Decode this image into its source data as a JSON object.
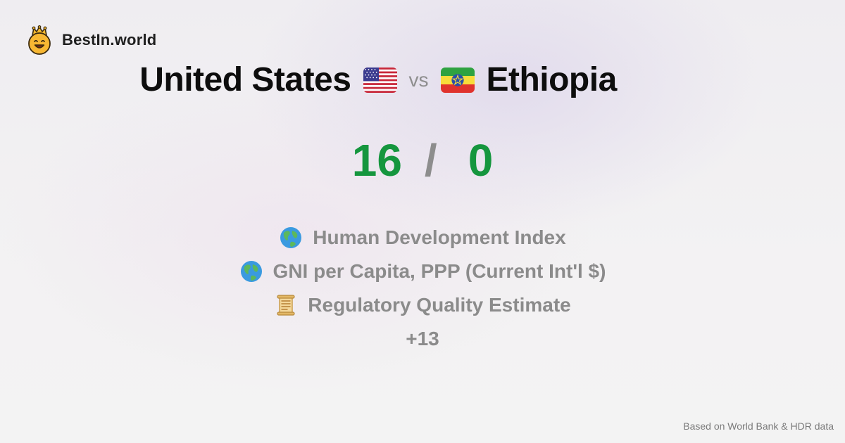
{
  "brand": {
    "name": "BestIn.world",
    "logo_icon": "smiling-crown-face-icon"
  },
  "comparison": {
    "country_a": "United States",
    "flag_a_icon": "us-flag-icon",
    "vs_label": "vs",
    "country_b": "Ethiopia",
    "flag_b_icon": "ethiopia-flag-icon",
    "score_a": "16",
    "separator": "/",
    "score_b": "0"
  },
  "metrics": [
    {
      "icon": "globe-icon",
      "label": "Human Development Index"
    },
    {
      "icon": "globe-icon",
      "label": "GNI per Capita, PPP (Current Int'l $)"
    },
    {
      "icon": "scroll-icon",
      "label": "Regulatory Quality Estimate"
    }
  ],
  "more_count": "+13",
  "footer": {
    "source": "Based on World Bank & HDR data"
  },
  "colors": {
    "score": "#15963e",
    "muted_text": "#8b8b8b",
    "title_text": "#0d0d0d"
  }
}
